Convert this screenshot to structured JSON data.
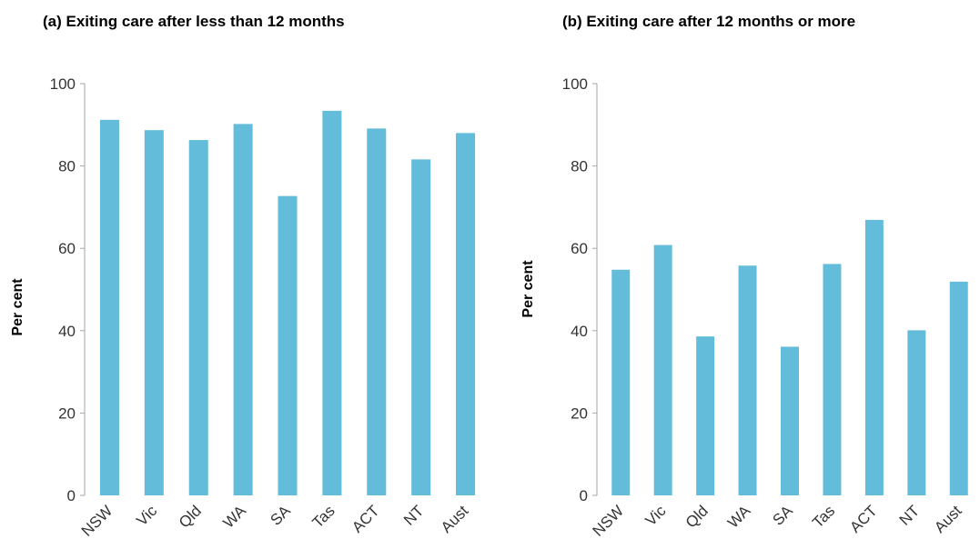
{
  "chart_data": [
    {
      "type": "bar",
      "title": "(a) Exiting care after less than 12 months",
      "ylabel": "Per cent",
      "xlabel": "",
      "categories": [
        "NSW",
        "Vic",
        "Qld",
        "WA",
        "SA",
        "Tas",
        "ACT",
        "NT",
        "Aust"
      ],
      "values": [
        91.2,
        88.7,
        86.3,
        90.2,
        72.7,
        93.4,
        89.1,
        81.6,
        88.0
      ],
      "ylim": [
        0,
        100
      ],
      "yticks": [
        0,
        20,
        40,
        60,
        80,
        100
      ],
      "grid": false,
      "legend": "none",
      "bar_color": "#63BCDA"
    },
    {
      "type": "bar",
      "title": "(b) Exiting care after 12 months or more",
      "ylabel": "Per cent",
      "xlabel": "",
      "categories": [
        "NSW",
        "Vic",
        "Qld",
        "WA",
        "SA",
        "Tas",
        "ACT",
        "NT",
        "Aust"
      ],
      "values": [
        54.8,
        60.8,
        38.6,
        55.8,
        36.1,
        56.2,
        66.9,
        40.1,
        51.9
      ],
      "ylim": [
        0,
        100
      ],
      "yticks": [
        0,
        20,
        40,
        60,
        80,
        100
      ],
      "grid": false,
      "legend": "none",
      "bar_color": "#63BCDA"
    }
  ]
}
